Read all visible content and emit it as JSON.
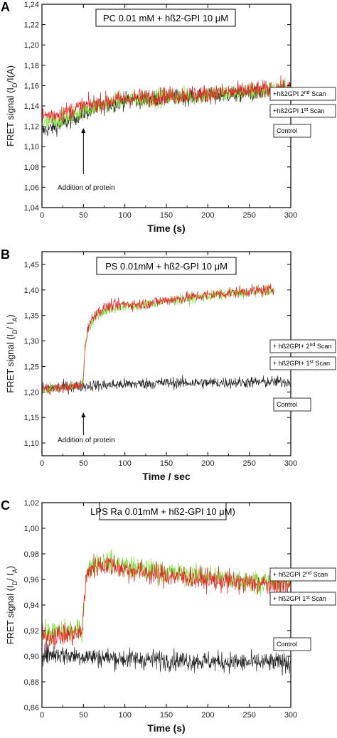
{
  "chart_data": [
    {
      "type": "line",
      "panel_label": "A",
      "title": "PC 0.01 mM + hß2-GPI 10 μM",
      "xlabel": "Time (s)",
      "ylabel": "FRET signal (I_D/I(A)",
      "xlim": [
        0,
        300
      ],
      "ylim": [
        1.04,
        1.24
      ],
      "xticks": [
        "0",
        "50",
        "100",
        "150",
        "200",
        "250",
        "300"
      ],
      "yticks": [
        "1,04",
        "1,06",
        "1,08",
        "1,10",
        "1,12",
        "1,14",
        "1,16",
        "1,18",
        "1,20",
        "1,22",
        "1,24"
      ],
      "grid": false,
      "annotation": "Addition of protein",
      "annotation_x": 50,
      "series": [
        {
          "name": "+hß2GPI 2nd Scan",
          "color": "#e8232a",
          "x": [
            0,
            25,
            50,
            75,
            100,
            150,
            200,
            250,
            300
          ],
          "values": [
            1.13,
            1.133,
            1.14,
            1.144,
            1.147,
            1.15,
            1.152,
            1.155,
            1.158
          ],
          "noise": 0.016
        },
        {
          "name": "+hß2GPI 1st Scan",
          "color": "#6fe02a",
          "x": [
            0,
            25,
            50,
            75,
            100,
            150,
            200,
            250,
            300
          ],
          "values": [
            1.122,
            1.127,
            1.136,
            1.142,
            1.146,
            1.149,
            1.151,
            1.154,
            1.157
          ],
          "noise": 0.016
        },
        {
          "name": "Control",
          "color": "#222222",
          "x": [
            0,
            25,
            50,
            75,
            100,
            150,
            200,
            250,
            300
          ],
          "values": [
            1.115,
            1.122,
            1.133,
            1.14,
            1.145,
            1.148,
            1.15,
            1.152,
            1.154
          ],
          "noise": 0.014
        }
      ]
    },
    {
      "type": "line",
      "panel_label": "B",
      "title": "PS 0.01mM + hß2-GPI 10 μM",
      "xlabel": "Time / sec",
      "ylabel": "FRET signal (I_D/ I_A)",
      "xlim": [
        0,
        300
      ],
      "ylim": [
        1.075,
        1.475
      ],
      "xticks": [
        "0",
        "50",
        "100",
        "150",
        "200",
        "250",
        "300"
      ],
      "yticks": [
        "1,10",
        "1,15",
        "1,20",
        "1,25",
        "1,30",
        "1,35",
        "1,40",
        "1,45"
      ],
      "grid": false,
      "annotation": "Addition of protein",
      "annotation_x": 50,
      "series": [
        {
          "name": "+ hß2GPI+ 2nd Scan",
          "color": "#e8232a",
          "x": [
            0,
            48,
            50,
            52,
            56,
            65,
            80,
            100,
            120,
            150,
            200,
            250,
            280
          ],
          "values": [
            1.205,
            1.212,
            1.23,
            1.29,
            1.33,
            1.355,
            1.368,
            1.372,
            1.372,
            1.38,
            1.39,
            1.398,
            1.4
          ],
          "noise": 0.02
        },
        {
          "name": "+ hß2GPI+ 1st Scan",
          "color": "#6fe02a",
          "x": [
            0,
            48,
            50,
            52,
            56,
            65,
            80,
            100,
            120,
            150,
            200,
            250,
            280
          ],
          "values": [
            1.205,
            1.212,
            1.228,
            1.285,
            1.325,
            1.35,
            1.362,
            1.368,
            1.37,
            1.378,
            1.388,
            1.396,
            1.398
          ],
          "noise": 0.018
        },
        {
          "name": "Control",
          "color": "#222222",
          "x": [
            0,
            50,
            100,
            150,
            200,
            250,
            300
          ],
          "values": [
            1.207,
            1.212,
            1.215,
            1.218,
            1.218,
            1.219,
            1.22
          ],
          "noise": 0.02
        }
      ]
    },
    {
      "type": "line",
      "panel_label": "C",
      "title": "LPS Ra 0.01mM + hß2-GPI 10 μM)",
      "xlabel": "Time (s)",
      "ylabel": "FRET signal (I_D/ I_A)",
      "xlim": [
        0,
        300
      ],
      "ylim": [
        0.86,
        1.02
      ],
      "xticks": [
        "0",
        "50",
        "100",
        "150",
        "200",
        "250",
        "300"
      ],
      "yticks": [
        "0,86",
        "0,88",
        "0,90",
        "0,92",
        "0,94",
        "0,96",
        "0,98",
        "1,00",
        "1,02"
      ],
      "grid": false,
      "series": [
        {
          "name": "+ hß2GPI 2nd Scan",
          "color": "#e8232a",
          "x": [
            0,
            48,
            50,
            53,
            60,
            80,
            100,
            150,
            200,
            250,
            300
          ],
          "values": [
            0.915,
            0.918,
            0.935,
            0.96,
            0.97,
            0.972,
            0.968,
            0.963,
            0.96,
            0.957,
            0.955
          ],
          "noise": 0.016
        },
        {
          "name": "+ hß2GPI 1st Scan",
          "color": "#6fe02a",
          "x": [
            0,
            48,
            50,
            53,
            60,
            80,
            100,
            150,
            200,
            250,
            300
          ],
          "values": [
            0.918,
            0.92,
            0.938,
            0.962,
            0.972,
            0.974,
            0.97,
            0.965,
            0.962,
            0.959,
            0.957
          ],
          "noise": 0.016
        },
        {
          "name": "Control",
          "color": "#222222",
          "x": [
            0,
            50,
            100,
            150,
            200,
            250,
            300
          ],
          "values": [
            0.902,
            0.9,
            0.898,
            0.897,
            0.896,
            0.895,
            0.895
          ],
          "noise": 0.014
        }
      ]
    }
  ]
}
